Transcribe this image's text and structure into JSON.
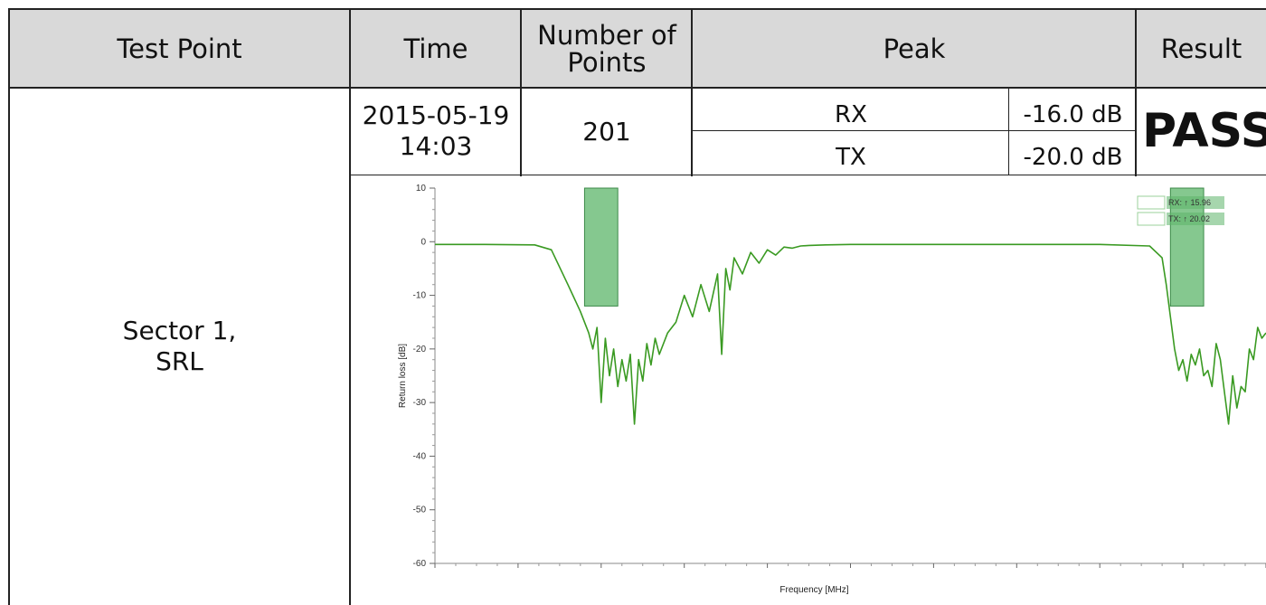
{
  "table": {
    "headers": {
      "test_point": "Test Point",
      "time": "Time",
      "num_points": "Number of\nPoints",
      "peak": "Peak",
      "result": "Result"
    },
    "row": {
      "test_point": "Sector 1,\nSRL",
      "time": "2015-05-19\n14:03",
      "num_points": "201",
      "peak_rx_label": "RX",
      "peak_rx_value": "-16.0 dB",
      "peak_tx_label": "TX",
      "peak_tx_value": "-20.0 dB",
      "result": "PASS"
    }
  },
  "colors": {
    "header_bg": "#d9d9d9",
    "trace": "#3a9a22",
    "band_fill": "#5cb56a"
  },
  "chart_data": {
    "type": "line",
    "xlabel": "Frequency [MHz]",
    "ylabel": "Return loss [dB]",
    "ylim": [
      -60,
      10
    ],
    "yticks": [
      "10",
      "0",
      "-10",
      "-20",
      "-30",
      "-40",
      "-50",
      "-60"
    ],
    "grid": false,
    "legend_position": "top-right",
    "legend": [
      {
        "label": "RX: ↑ 15.96"
      },
      {
        "label": "TX: ↑ 20.02"
      }
    ],
    "band_markers": [
      {
        "x_start": 0.18,
        "x_end": 0.22,
        "y_top": 10,
        "y_bottom": -12
      },
      {
        "x_start": 0.885,
        "x_end": 0.925,
        "y_top": 10,
        "y_bottom": -12
      }
    ],
    "x": [
      0.0,
      0.06,
      0.12,
      0.14,
      0.16,
      0.175,
      0.185,
      0.19,
      0.195,
      0.2,
      0.205,
      0.21,
      0.215,
      0.22,
      0.225,
      0.23,
      0.235,
      0.24,
      0.245,
      0.25,
      0.255,
      0.26,
      0.265,
      0.27,
      0.28,
      0.29,
      0.3,
      0.31,
      0.32,
      0.33,
      0.34,
      0.345,
      0.35,
      0.355,
      0.36,
      0.37,
      0.38,
      0.39,
      0.4,
      0.41,
      0.42,
      0.43,
      0.44,
      0.45,
      0.47,
      0.5,
      0.6,
      0.7,
      0.8,
      0.86,
      0.875,
      0.88,
      0.885,
      0.89,
      0.895,
      0.9,
      0.905,
      0.91,
      0.915,
      0.92,
      0.925,
      0.93,
      0.935,
      0.94,
      0.945,
      0.95,
      0.955,
      0.96,
      0.965,
      0.97,
      0.975,
      0.98,
      0.985,
      0.99,
      0.995,
      1.0
    ],
    "y": [
      -0.5,
      -0.5,
      -0.6,
      -1.5,
      -8,
      -13,
      -17,
      -20,
      -16,
      -30,
      -18,
      -25,
      -20,
      -27,
      -22,
      -26,
      -21,
      -34,
      -22,
      -26,
      -19,
      -23,
      -18,
      -21,
      -17,
      -15,
      -10,
      -14,
      -8,
      -13,
      -6,
      -21,
      -5,
      -9,
      -3,
      -6,
      -2,
      -4,
      -1.5,
      -2.5,
      -1,
      -1.2,
      -0.8,
      -0.7,
      -0.6,
      -0.5,
      -0.5,
      -0.5,
      -0.5,
      -0.8,
      -3,
      -8,
      -14,
      -20,
      -24,
      -22,
      -26,
      -21,
      -23,
      -20,
      -25,
      -24,
      -27,
      -19,
      -22,
      -28,
      -34,
      -25,
      -31,
      -27,
      -28,
      -20,
      -22,
      -16,
      -18,
      -17
    ]
  }
}
